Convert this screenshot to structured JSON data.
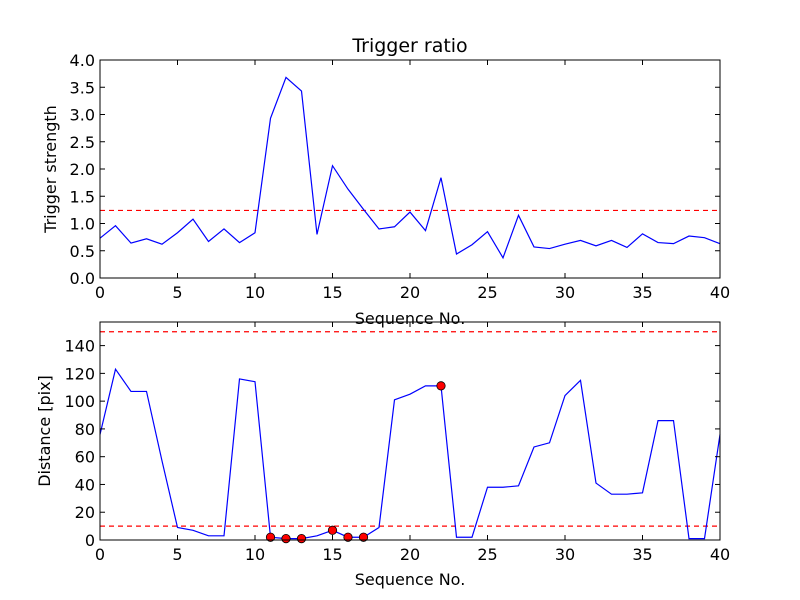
{
  "chart_data": [
    {
      "type": "line",
      "title": "Trigger ratio",
      "xlabel": "Sequence No.",
      "ylabel": "Trigger strength",
      "xlim": [
        0,
        40
      ],
      "ylim": [
        0,
        4.0
      ],
      "x_ticks": [
        0,
        5,
        10,
        15,
        20,
        25,
        30,
        35,
        40
      ],
      "y_ticks": [
        "0.0",
        "0.5",
        "1.0",
        "1.5",
        "2.0",
        "2.5",
        "3.0",
        "3.5",
        "4.0"
      ],
      "grid": false,
      "line_color": "#0000ff",
      "series": [
        {
          "x": [
            0,
            1,
            2,
            3,
            4,
            5,
            6,
            7,
            8,
            9,
            10,
            11,
            12,
            13,
            14,
            15,
            16,
            17,
            18,
            19,
            20,
            21,
            22,
            23,
            24,
            25,
            26,
            27,
            28,
            29,
            30,
            31,
            32,
            33,
            34,
            35,
            36,
            37,
            38,
            39,
            40
          ],
          "values": [
            0.73,
            0.96,
            0.64,
            0.72,
            0.62,
            0.83,
            1.08,
            0.67,
            0.9,
            0.65,
            0.83,
            2.93,
            3.68,
            3.43,
            0.8,
            2.06,
            1.63,
            1.26,
            0.9,
            0.94,
            1.21,
            0.87,
            1.84,
            0.44,
            0.61,
            0.85,
            0.37,
            1.15,
            0.57,
            0.54,
            0.62,
            0.69,
            0.59,
            0.69,
            0.56,
            0.81,
            0.65,
            0.63,
            0.77,
            0.74,
            0.63
          ]
        }
      ],
      "hlines": [
        {
          "y": 1.24,
          "color": "#ff0000",
          "style": "dashed"
        }
      ]
    },
    {
      "type": "line",
      "title": "",
      "xlabel": "Sequence No.",
      "ylabel": "Distance [pix]",
      "xlim": [
        0,
        40
      ],
      "ylim": [
        0,
        157
      ],
      "x_ticks": [
        0,
        5,
        10,
        15,
        20,
        25,
        30,
        35,
        40
      ],
      "y_ticks": [
        0,
        20,
        40,
        60,
        80,
        100,
        120,
        140
      ],
      "grid": false,
      "line_color": "#0000ff",
      "series": [
        {
          "x": [
            0,
            1,
            2,
            3,
            4,
            5,
            6,
            7,
            8,
            9,
            10,
            11,
            12,
            13,
            14,
            15,
            16,
            17,
            18,
            19,
            20,
            21,
            22,
            23,
            24,
            25,
            26,
            27,
            28,
            29,
            30,
            31,
            32,
            33,
            34,
            35,
            36,
            37,
            38,
            39,
            40
          ],
          "values": [
            76,
            123,
            107,
            107,
            57,
            9,
            7,
            3,
            3,
            116,
            114,
            2,
            1,
            1,
            3,
            7,
            2,
            2,
            9,
            101,
            105,
            111,
            111,
            2,
            2,
            38,
            38,
            39,
            67,
            70,
            104,
            115,
            41,
            33,
            33,
            34,
            86,
            86,
            1,
            1,
            76
          ]
        }
      ],
      "markers": {
        "color": "#ff0000",
        "points": [
          {
            "x": 11,
            "y": 2
          },
          {
            "x": 12,
            "y": 1
          },
          {
            "x": 13,
            "y": 1
          },
          {
            "x": 15,
            "y": 7
          },
          {
            "x": 16,
            "y": 2
          },
          {
            "x": 17,
            "y": 2
          },
          {
            "x": 22,
            "y": 111
          }
        ]
      },
      "hlines": [
        {
          "y": 150,
          "color": "#ff0000",
          "style": "dashed"
        },
        {
          "y": 10,
          "color": "#ff0000",
          "style": "dashed"
        }
      ]
    }
  ]
}
